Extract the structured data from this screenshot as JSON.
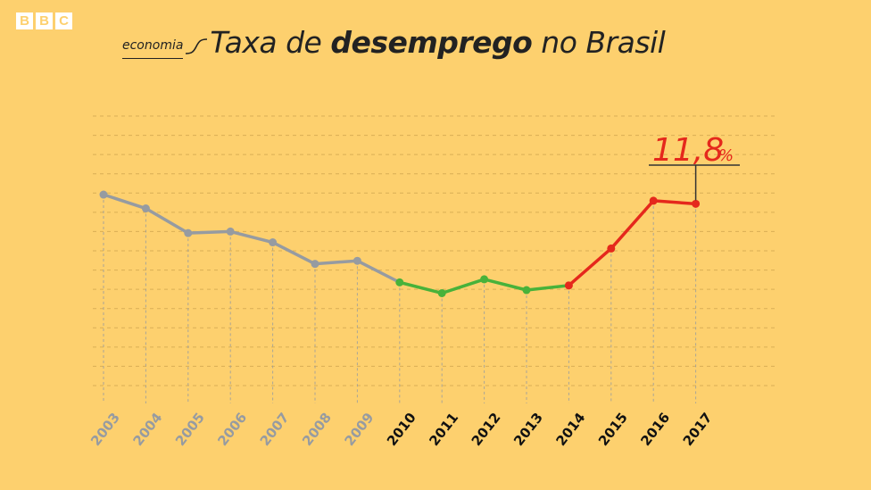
{
  "logo": {
    "letters": [
      "B",
      "B",
      "C"
    ]
  },
  "title": {
    "kicker": "economia",
    "part1": "Taxa de ",
    "bold": "desemprego",
    "part2": " no Brasil"
  },
  "colors": {
    "background": "#fdd06e",
    "gray": "#969ba1",
    "green": "#48b23a",
    "red": "#e5281c",
    "grid": "#d9ae55",
    "tick_dark": "#111111"
  },
  "chart_data": {
    "type": "line",
    "title": "Taxa de desemprego no Brasil",
    "xlabel": "",
    "ylabel": "",
    "grid": true,
    "categories": [
      "2003",
      "2004",
      "2005",
      "2006",
      "2007",
      "2008",
      "2009",
      "2010",
      "2011",
      "2012",
      "2013",
      "2014",
      "2015",
      "2016",
      "2017"
    ],
    "values": [
      12.4,
      11.5,
      9.9,
      10.0,
      9.3,
      7.9,
      8.1,
      6.7,
      6.0,
      6.9,
      6.2,
      6.5,
      8.9,
      12.0,
      11.8
    ],
    "segments": [
      {
        "color": "gray",
        "from": 0,
        "to": 7
      },
      {
        "color": "green",
        "from": 7,
        "to": 11
      },
      {
        "color": "red",
        "from": 11,
        "to": 14
      }
    ],
    "tick_colors": [
      "gray",
      "gray",
      "gray",
      "gray",
      "gray",
      "gray",
      "gray",
      "dark",
      "dark",
      "dark",
      "dark",
      "dark",
      "dark",
      "dark",
      "dark"
    ],
    "ylim": [
      0,
      17.5
    ],
    "annotation": {
      "index": 14,
      "value_label": "11,8",
      "unit": "%"
    }
  }
}
